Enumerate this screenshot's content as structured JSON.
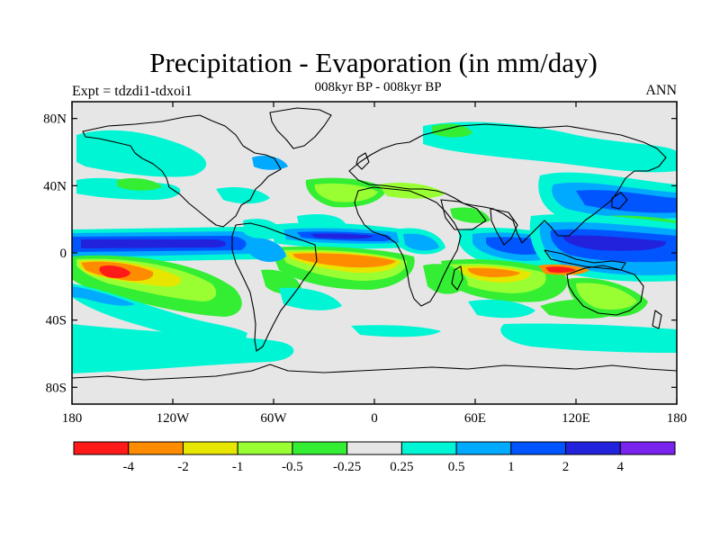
{
  "title": "Precipitation - Evaporation (in mm/day)",
  "subtitle_left": "Expt = tdzdi1-tdxoi1",
  "subtitle_center": "008kyr BP - 008kyr BP",
  "subtitle_right": "ANN",
  "map": {
    "projection": "cylindrical-equidistant",
    "lon_range": [
      -180,
      180
    ],
    "lat_range": [
      -90,
      90
    ],
    "background_color": "#e6e6e6",
    "coastline_color": "#000000"
  },
  "axes": {
    "y_ticks": [
      {
        "label": "80N",
        "lat": 80
      },
      {
        "label": "40N",
        "lat": 40
      },
      {
        "label": "0",
        "lat": 0
      },
      {
        "label": "40S",
        "lat": -40
      },
      {
        "label": "80S",
        "lat": -80
      }
    ],
    "x_ticks": [
      {
        "label": "180",
        "lon": -180
      },
      {
        "label": "120W",
        "lon": -120
      },
      {
        "label": "60W",
        "lon": -60
      },
      {
        "label": "0",
        "lon": 0
      },
      {
        "label": "60E",
        "lon": 60
      },
      {
        "label": "120E",
        "lon": 120
      },
      {
        "label": "180",
        "lon": 180
      }
    ]
  },
  "colorbar": {
    "colors": [
      "#ff1a1a",
      "#ff8c00",
      "#e6e600",
      "#99ff33",
      "#33ee33",
      "#e6e6e6",
      "#00f5d4",
      "#00aaff",
      "#0055ff",
      "#2222dd",
      "#7a22ee"
    ],
    "labels": [
      "-4",
      "-2",
      "-1",
      "-0.5",
      "-0.25",
      "0.25",
      "0.5",
      "1",
      "2",
      "4"
    ]
  }
}
